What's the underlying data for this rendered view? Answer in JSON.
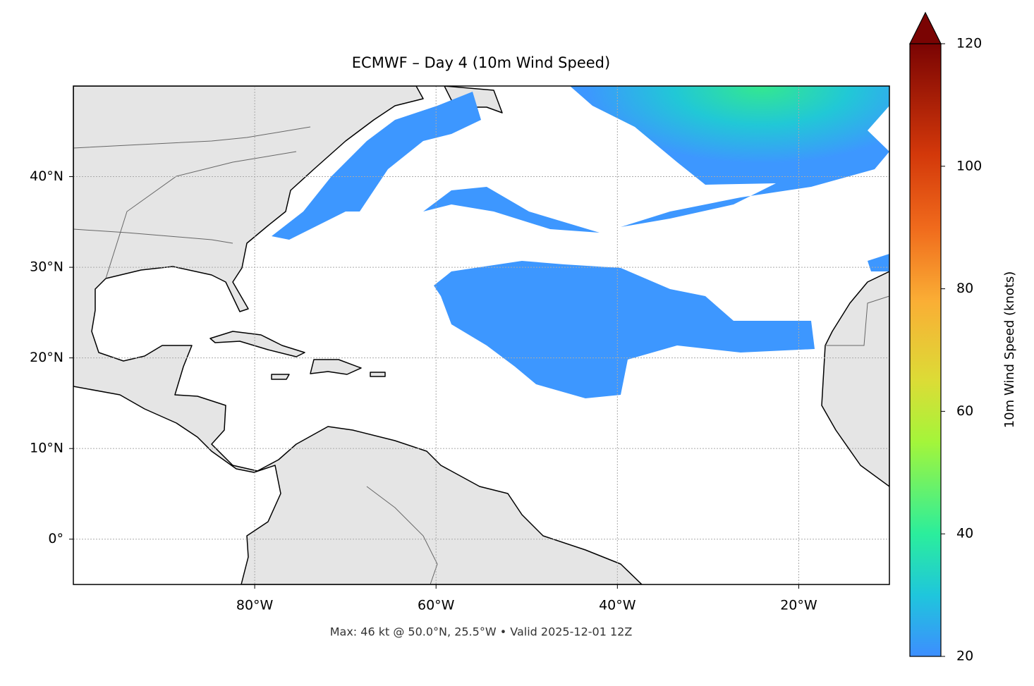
{
  "map": {
    "title": "ECMWF – Day 4 (10m Wind Speed)",
    "footnote": "Max: 46 kt @ 50.0°N, 25.5°W • Valid 2025-12-01 12Z",
    "xlim": [
      -100,
      -10
    ],
    "ylim": [
      -5,
      50
    ],
    "xticks": [
      {
        "value": -80,
        "label": "80°W"
      },
      {
        "value": -60,
        "label": "60°W"
      },
      {
        "value": -40,
        "label": "40°W"
      },
      {
        "value": -20,
        "label": "20°W"
      }
    ],
    "yticks": [
      {
        "value": 0,
        "label": "0°"
      },
      {
        "value": 10,
        "label": "10°N"
      },
      {
        "value": 20,
        "label": "20°N"
      },
      {
        "value": 30,
        "label": "30°N"
      },
      {
        "value": 40,
        "label": "40°N"
      }
    ],
    "grid": true,
    "colorbar": {
      "label": "10m Wind Speed (knots)",
      "lim": [
        20,
        120
      ],
      "ticks": [
        20,
        40,
        60,
        80,
        100,
        120
      ]
    }
  }
}
